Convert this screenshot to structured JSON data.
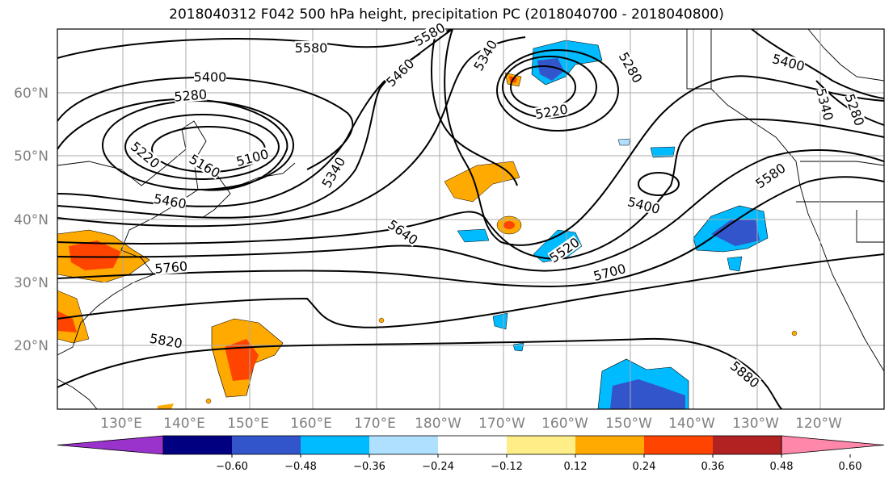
{
  "title": "2018040312 F042 500 hPa height, precipitation PC (2018040700 - 2018040800)",
  "lat_labels": [
    "60°N",
    "50°N",
    "40°N",
    "30°N",
    "20°N"
  ],
  "lon_labels": [
    "130°E",
    "140°E",
    "150°E",
    "160°E",
    "170°E",
    "180°W",
    "170°W",
    "160°W",
    "150°W",
    "140°W",
    "130°W",
    "120°W"
  ],
  "contour_labels": [
    {
      "value": "5580"
    },
    {
      "value": "5580"
    },
    {
      "value": "5400"
    },
    {
      "value": "5280"
    },
    {
      "value": "5220"
    },
    {
      "value": "5160"
    },
    {
      "value": "5100"
    },
    {
      "value": "5460"
    },
    {
      "value": "5340"
    },
    {
      "value": "5460"
    },
    {
      "value": "5340"
    },
    {
      "value": "5220"
    },
    {
      "value": "5280"
    },
    {
      "value": "5400"
    },
    {
      "value": "5340"
    },
    {
      "value": "5280"
    },
    {
      "value": "5580"
    },
    {
      "value": "5400"
    },
    {
      "value": "5640"
    },
    {
      "value": "5520"
    },
    {
      "value": "5700"
    },
    {
      "value": "5760"
    },
    {
      "value": "5820"
    },
    {
      "value": "5880"
    }
  ],
  "colorbar": {
    "ticks": [
      "−0.60",
      "−0.48",
      "−0.36",
      "−0.24",
      "−0.12",
      "0.12",
      "0.24",
      "0.36",
      "0.48",
      "0.60"
    ],
    "colors": [
      "#9933cc",
      "#000080",
      "#3355cc",
      "#00bbff",
      "#b0e0ff",
      "#ffffff",
      "#ffee88",
      "#ffaa00",
      "#ff4400",
      "#b22222",
      "#ff88aa"
    ]
  }
}
